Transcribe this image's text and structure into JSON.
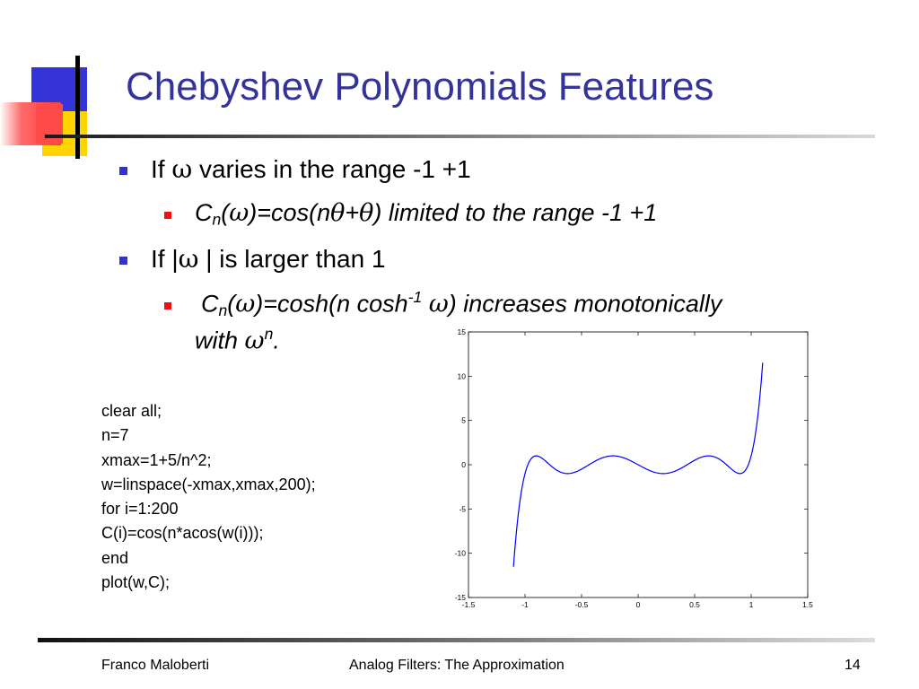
{
  "slide": {
    "title": "Chebyshev Polynomials Features",
    "bullets": [
      {
        "text_pre": "If ",
        "symbol": "ω",
        "text_post": " varies in the range -1 +1"
      },
      {
        "text_pre": "If |",
        "symbol": "ω",
        "text_post": " | is larger than 1"
      }
    ],
    "sub_bullets": [
      {
        "c": "C",
        "n": "n",
        "open": "(",
        "omega": "ω",
        "eq": ")=cos(n",
        "theta1": "θ",
        "plus": "+",
        "theta2": "θ",
        "tail": ") limited to the range -1 +1"
      },
      {
        "c": "C",
        "n": "n",
        "open": "(",
        "omega": "ω",
        "eq": ")=cosh(n cosh",
        "exp": "-1",
        "space": " ",
        "omega2": "ω",
        "tail": ") increases monotonically",
        "line2_pre": "with ",
        "omega3": "ω",
        "exp2": "n",
        "line2_post": "."
      }
    ],
    "code_lines": [
      "clear all;",
      "n=7",
      "xmax=1+5/n^2;",
      "w=linspace(-xmax,xmax,200);",
      "for i=1:200",
      "C(i)=cos(n*acos(w(i)));",
      "end",
      "plot(w,C);"
    ],
    "footer": {
      "author": "Franco Maloberti",
      "course": "Analog Filters: The Approximation",
      "page": "14"
    }
  },
  "chart_data": {
    "type": "line",
    "title": "",
    "xlabel": "",
    "ylabel": "",
    "xlim": [
      -1.5,
      1.5
    ],
    "ylim": [
      -15,
      15
    ],
    "xticks": [
      -1.5,
      -1,
      -0.5,
      0,
      0.5,
      1,
      1.5
    ],
    "yticks": [
      -15,
      -10,
      -5,
      0,
      5,
      10,
      15
    ],
    "xtick_labels": [
      "-1.5",
      "-1",
      "-0.5",
      "0",
      "0.5",
      "1",
      "1.5"
    ],
    "ytick_labels": [
      "-15",
      "-10",
      "-5",
      "0",
      "5",
      "10",
      "15"
    ],
    "grid": false,
    "series": [
      {
        "color": "#0000ff",
        "function": "T7(w) = cos(7*acos(w))",
        "n": 7,
        "x_range": [
          -1.102,
          1.102
        ],
        "points": 200
      }
    ]
  }
}
